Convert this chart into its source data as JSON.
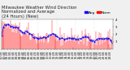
{
  "title1": "Milwaukee Weather Wind Direction",
  "title2": "Normalized and Average",
  "title3": "(24 Hours) (New)",
  "bg_color": "#f0f0f0",
  "plot_bg_color": "#ffffff",
  "grid_color": "#aaaaaa",
  "bar_color": "#ff0000",
  "avg_color": "#0000ff",
  "n_points": 144,
  "seed": 42,
  "ylim": [
    0,
    360
  ],
  "ytick_labels": [
    "",
    "1",
    "2",
    "3",
    "4"
  ],
  "title_fontsize": 3.8,
  "tick_fontsize": 2.8,
  "legend_fontsize": 3.2
}
